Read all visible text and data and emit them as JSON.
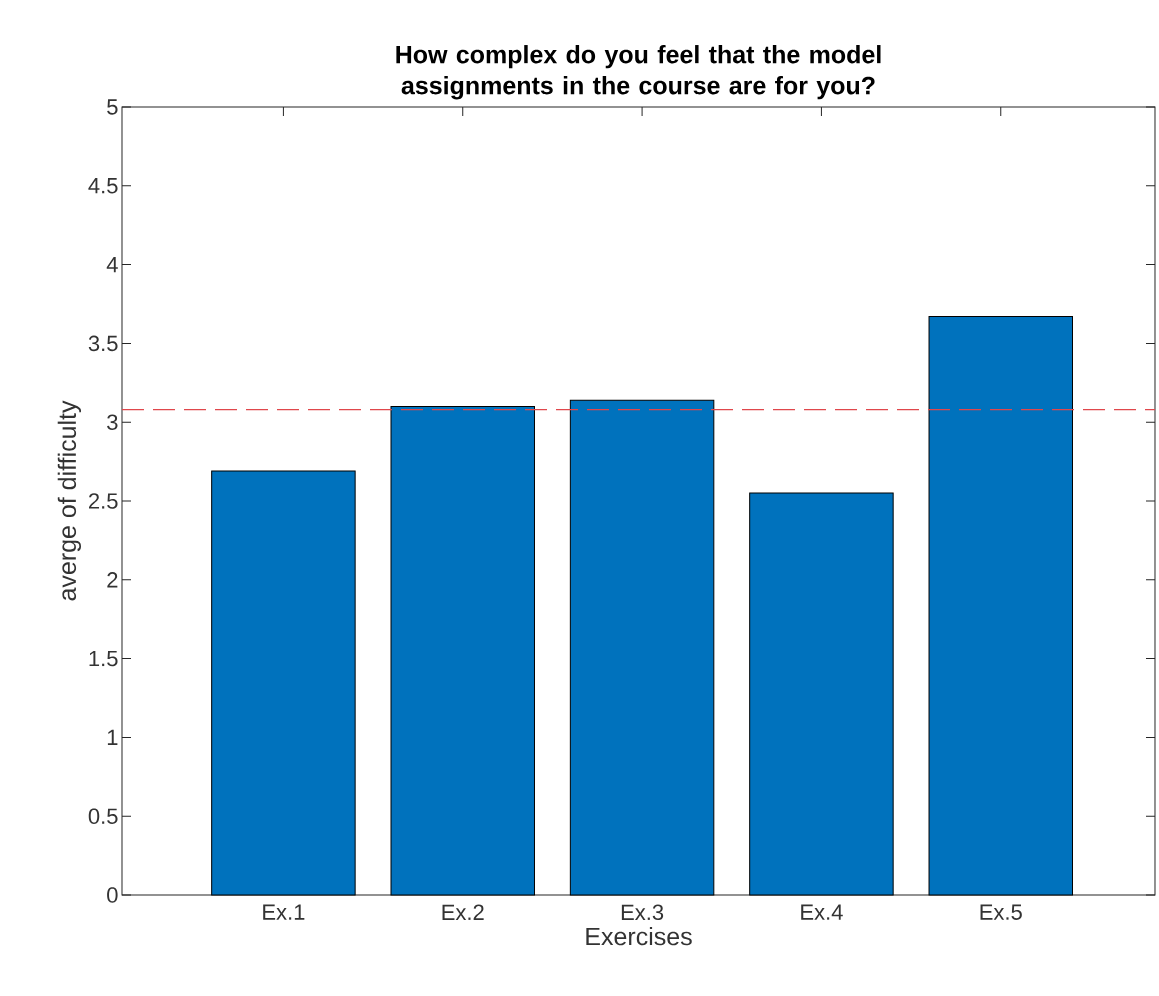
{
  "chart_data": {
    "type": "bar",
    "title": "How complex do you feel that the model assignments in the course are for you?",
    "xlabel": "Exercises",
    "ylabel": "averge of difficulty",
    "categories": [
      "Ex.1",
      "Ex.2",
      "Ex.3",
      "Ex.4",
      "Ex.5"
    ],
    "values": [
      2.69,
      3.1,
      3.14,
      2.55,
      3.67
    ],
    "color": "#0072bd",
    "ylim": [
      0,
      5
    ],
    "yticks": [
      0,
      0.5,
      1,
      1.5,
      2,
      2.5,
      3,
      3.5,
      4,
      4.5,
      5
    ],
    "ref_lines": [
      {
        "axis": "y",
        "value": 3.08,
        "color": "#e0474c",
        "line_style": "dashed"
      }
    ]
  }
}
